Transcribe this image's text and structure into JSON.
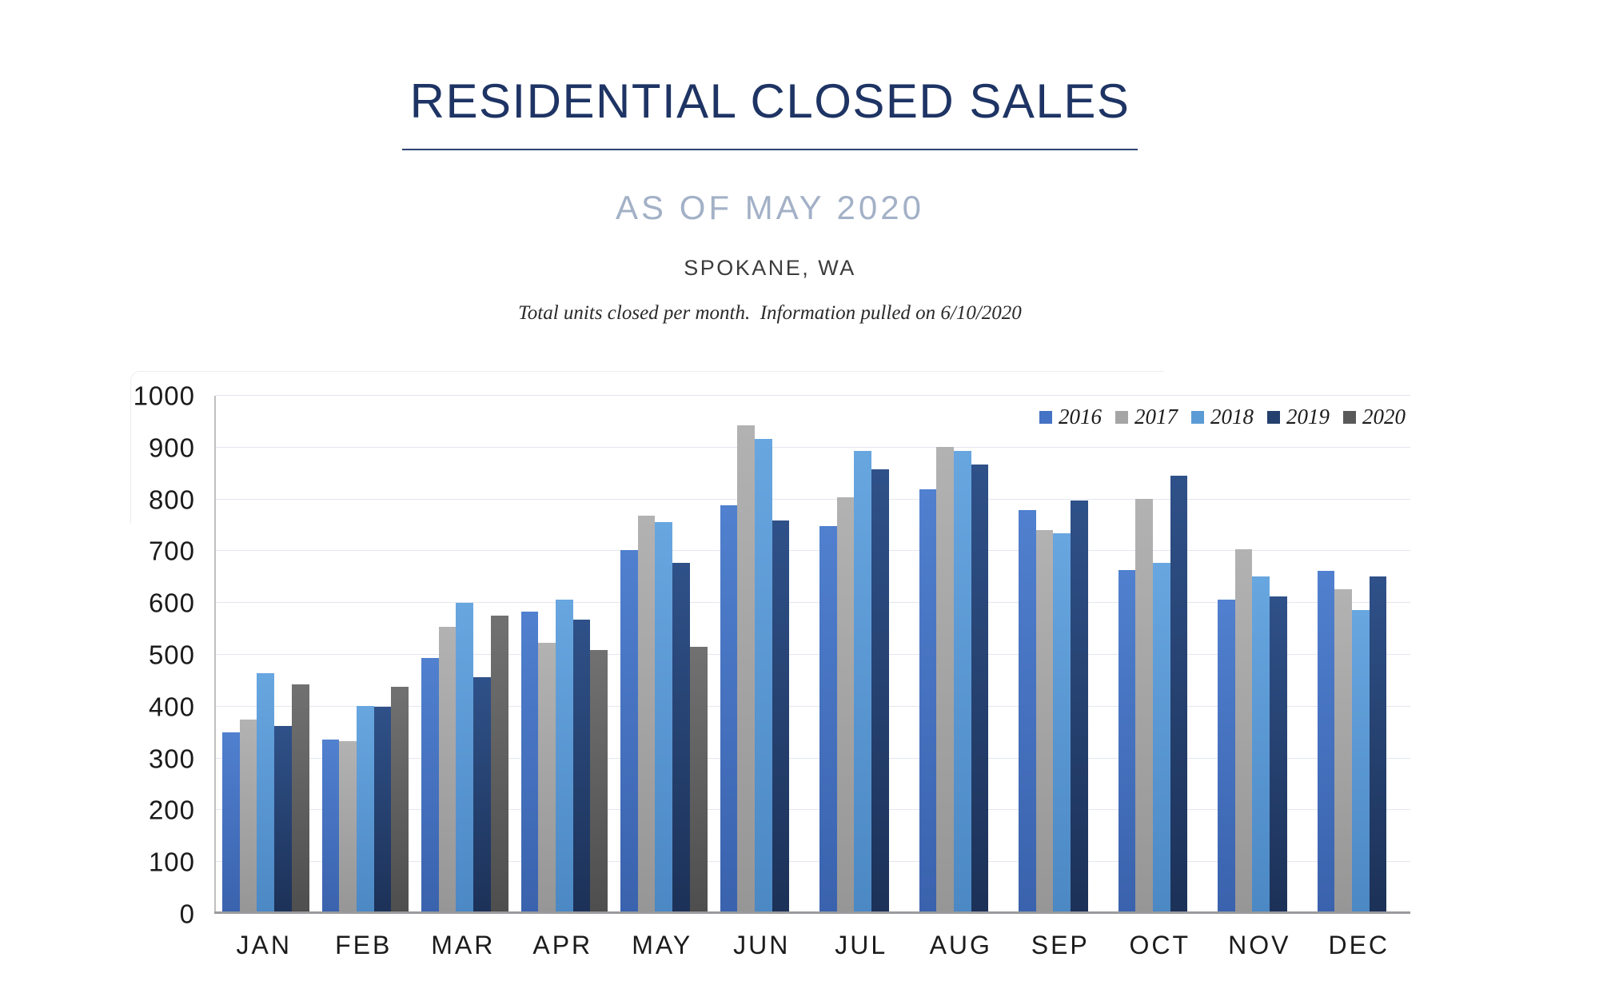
{
  "header": {
    "title": "RESIDENTIAL CLOSED SALES",
    "subtitle": "AS OF MAY 2020",
    "location": "SPOKANE, WA",
    "note": "Total units closed per month.  Information pulled on 6/10/2020"
  },
  "chart_data": {
    "type": "bar",
    "title": "RESIDENTIAL CLOSED SALES",
    "subtitle": "AS OF MAY 2020",
    "location": "SPOKANE, WA",
    "footnote": "Total units closed per month.  Information pulled on 6/10/2020",
    "categories": [
      "JAN",
      "FEB",
      "MAR",
      "APR",
      "MAY",
      "JUN",
      "JUL",
      "AUG",
      "SEP",
      "OCT",
      "NOV",
      "DEC"
    ],
    "series": [
      {
        "name": "2016",
        "color": "#4472C4",
        "color_top": "#5080cf",
        "color_bottom": "#3a62ad",
        "values": [
          350,
          336,
          494,
          584,
          702,
          789,
          748,
          820,
          780,
          663,
          607,
          662
        ]
      },
      {
        "name": "2017",
        "color": "#A5A5A5",
        "color_top": "#b2b2b2",
        "color_bottom": "#969696",
        "values": [
          375,
          333,
          554,
          523,
          768,
          943,
          804,
          901,
          741,
          801,
          704,
          627
        ]
      },
      {
        "name": "2018",
        "color": "#5B9BD5",
        "color_top": "#68a6e0",
        "color_bottom": "#4b88c4",
        "values": [
          464,
          402,
          600,
          607,
          756,
          917,
          894,
          894,
          734,
          678,
          652,
          586
        ]
      },
      {
        "name": "2019",
        "color": "#24406E",
        "color_top": "#2f5189",
        "color_bottom": "#1c3157",
        "values": [
          363,
          399,
          457,
          568,
          678,
          760,
          858,
          868,
          798,
          845,
          613,
          651
        ]
      },
      {
        "name": "2020",
        "color": "#595959",
        "color_top": "#717171",
        "color_bottom": "#4e4e4e",
        "values": [
          443,
          438,
          576,
          510,
          515,
          null,
          null,
          null,
          null,
          null,
          null,
          null
        ]
      }
    ],
    "ylim": [
      0,
      1000
    ],
    "ytick_step": 100,
    "yticks": [
      0,
      100,
      200,
      300,
      400,
      500,
      600,
      700,
      800,
      900,
      1000
    ],
    "xlabel": "",
    "ylabel": "",
    "grid": true,
    "legend_position": "top-right",
    "legend": [
      "2016",
      "2017",
      "2018",
      "2019",
      "2020"
    ]
  }
}
